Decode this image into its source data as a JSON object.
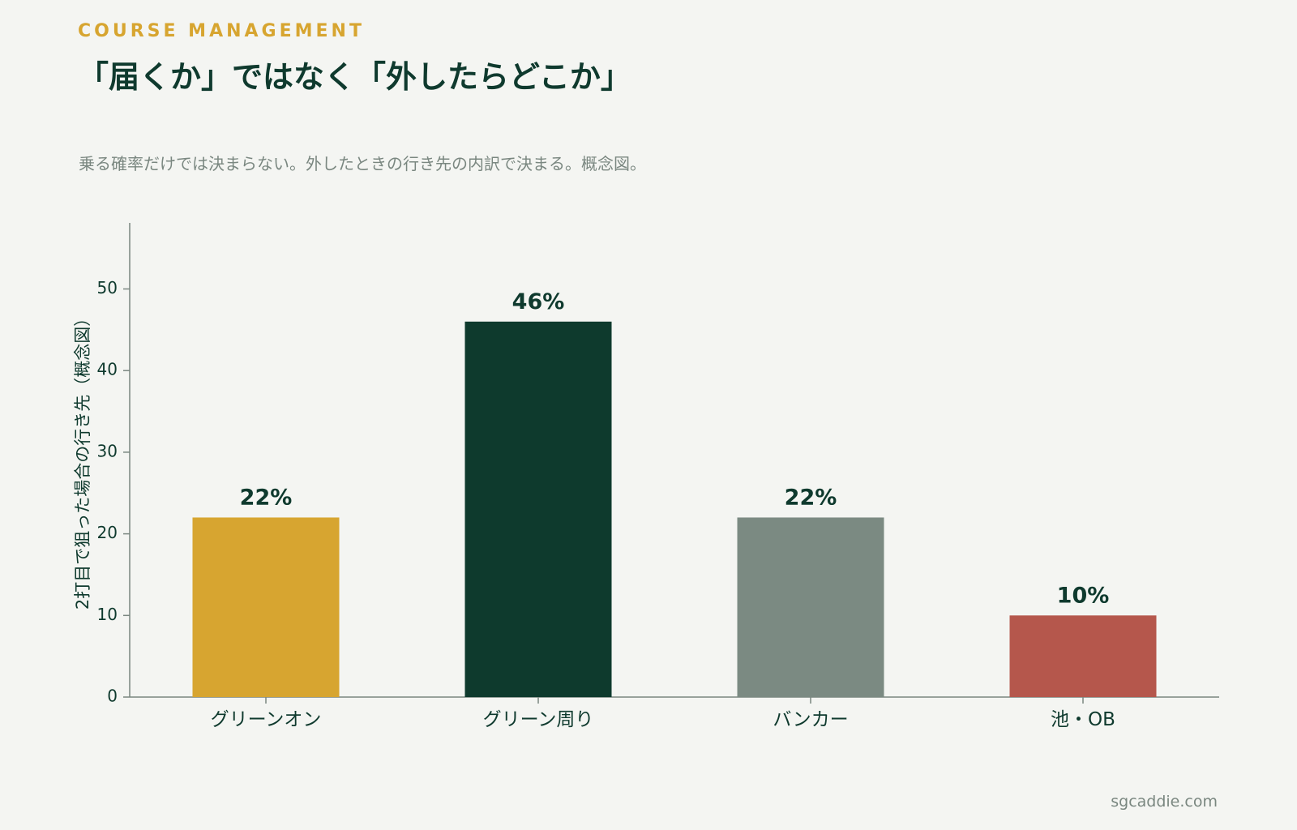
{
  "header": {
    "kicker": "COURSE MANAGEMENT",
    "title": "「届くか」ではなく「外したらどこか」",
    "subtitle": "乗る確率だけでは決まらない。外したときの行き先の内訳で決まる。概念図。"
  },
  "footer": {
    "source": "sgcaddie.com"
  },
  "chart_data": {
    "type": "bar",
    "categories": [
      "グリーンオン",
      "グリーン周り",
      "バンカー",
      "池・OB"
    ],
    "values": [
      22,
      46,
      22,
      10
    ],
    "value_labels": [
      "22%",
      "46%",
      "22%",
      "10%"
    ],
    "colors": [
      "#d7a530",
      "#0e3a2d",
      "#7b8a82",
      "#b5574c"
    ],
    "ylabel": "2打目で狙った場合の行き先（概念図）",
    "xlabel": "",
    "ylim": [
      0,
      58
    ],
    "yticks": [
      0,
      10,
      20,
      30,
      40,
      50
    ],
    "grid": false,
    "legend": "none"
  }
}
